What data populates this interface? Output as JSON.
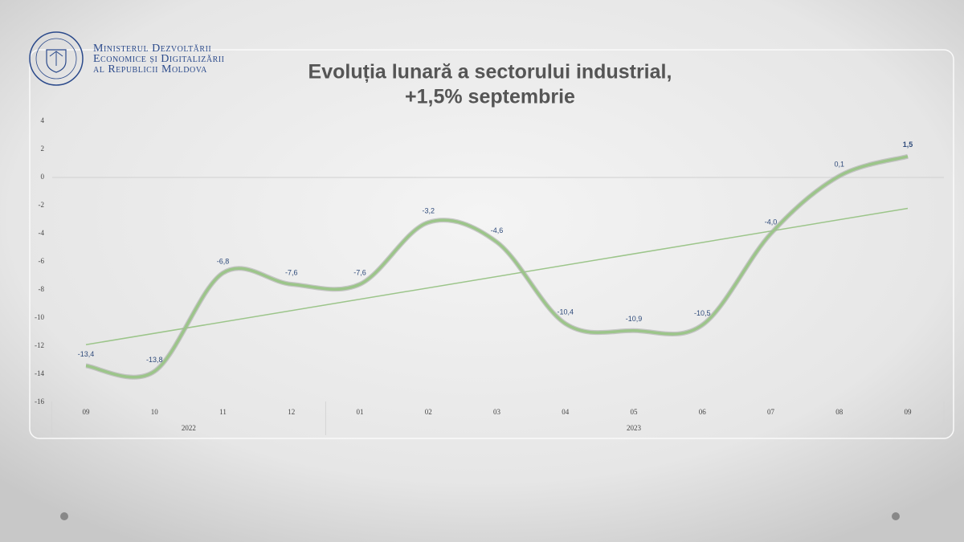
{
  "header": {
    "ministry": [
      "Ministerul Dezvoltării",
      "Economice și Digitalizării",
      "al Republicii Moldova"
    ]
  },
  "chart_data": {
    "type": "line",
    "title": [
      "Evoluția lunară a sectorului industrial,",
      "+1,5% septembrie"
    ],
    "categories": [
      "09",
      "10",
      "11",
      "12",
      "01",
      "02",
      "03",
      "04",
      "05",
      "06",
      "07",
      "08",
      "09"
    ],
    "year_groups": [
      {
        "label": "2022",
        "span": 4
      },
      {
        "label": "2023",
        "span": 9
      }
    ],
    "values": [
      -13.4,
      -13.8,
      -6.8,
      -7.6,
      -7.6,
      -3.2,
      -4.6,
      -10.4,
      -10.9,
      -10.5,
      -4.0,
      0.1,
      1.5
    ],
    "value_labels": [
      "-13,4",
      "-13,8",
      "-6,8",
      "-7,6",
      "-7,6",
      "-3,2",
      "-4,6",
      "-10,4",
      "-10,9",
      "-10,5",
      "-4,0",
      "0,1",
      "1,5"
    ],
    "color": "#9cc58a",
    "trendline": {
      "color": "#9cc58a",
      "values": [
        -11.9,
        -2.2
      ]
    },
    "ylim": [
      -16,
      4
    ],
    "yticks": [
      -16,
      -14,
      -12,
      -10,
      -8,
      -6,
      -4,
      -2,
      0,
      2,
      4
    ]
  }
}
